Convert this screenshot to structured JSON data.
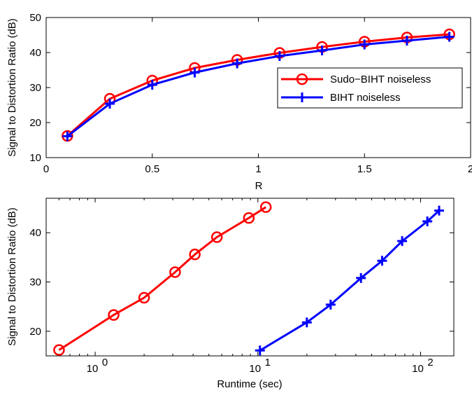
{
  "chart_data": [
    {
      "type": "line",
      "xlabel": "R",
      "ylabel": "Signal to Distortion Ratio (dB)",
      "xlim": [
        0,
        2
      ],
      "ylim": [
        10,
        50
      ],
      "x_scale": "linear",
      "xticks": [
        0,
        0.5,
        1,
        1.5,
        2
      ],
      "xtick_labels": [
        "0",
        "0.5",
        "1",
        "1.5",
        "2"
      ],
      "yticks": [
        10,
        20,
        30,
        40,
        50
      ],
      "ytick_labels": [
        "10",
        "20",
        "30",
        "40",
        "50"
      ],
      "grid": false,
      "legend_position": "right",
      "series": [
        {
          "name": "Sudo−BIHT noiseless",
          "color": "#ff0000",
          "marker": "circle",
          "x": [
            0.1,
            0.3,
            0.5,
            0.7,
            0.9,
            1.1,
            1.3,
            1.5,
            1.7,
            1.9
          ],
          "y": [
            16.2,
            26.8,
            32.0,
            35.6,
            37.9,
            39.9,
            41.6,
            43.1,
            44.3,
            45.2
          ]
        },
        {
          "name": "BIHT noiseless",
          "color": "#0000ff",
          "marker": "plus",
          "x": [
            0.1,
            0.3,
            0.5,
            0.7,
            0.9,
            1.1,
            1.3,
            1.5,
            1.7,
            1.9
          ],
          "y": [
            16.1,
            25.4,
            30.8,
            34.3,
            36.9,
            39.0,
            40.6,
            42.3,
            43.4,
            44.5
          ]
        }
      ]
    },
    {
      "type": "line",
      "xlabel": "Runtime (sec)",
      "ylabel": "Signal to Distortion Ratio (dB)",
      "xlim": [
        0.5,
        160
      ],
      "ylim": [
        15,
        47
      ],
      "x_scale": "log",
      "xticks": [
        1,
        10,
        100
      ],
      "xtick_labels": [
        {
          "base": "10",
          "exp": "0"
        },
        {
          "base": "10",
          "exp": "1"
        },
        {
          "base": "10",
          "exp": "2"
        }
      ],
      "yticks": [
        20,
        30,
        40
      ],
      "ytick_labels": [
        "20",
        "30",
        "40"
      ],
      "grid": false,
      "series": [
        {
          "name": "Sudo−BIHT noiseless",
          "color": "#ff0000",
          "marker": "circle",
          "x": [
            0.6,
            1.3,
            2.0,
            3.1,
            4.1,
            5.6,
            8.8,
            11.2
          ],
          "y": [
            16.2,
            23.3,
            26.8,
            32.0,
            35.6,
            39.1,
            43.0,
            45.2
          ]
        },
        {
          "name": "BIHT noiseless",
          "color": "#0000ff",
          "marker": "plus",
          "x": [
            10.3,
            20.0,
            28.0,
            43.0,
            58.0,
            77.0,
            110.0,
            130.0
          ],
          "y": [
            16.1,
            21.8,
            25.4,
            30.8,
            34.3,
            38.3,
            42.3,
            44.5
          ]
        }
      ]
    }
  ]
}
